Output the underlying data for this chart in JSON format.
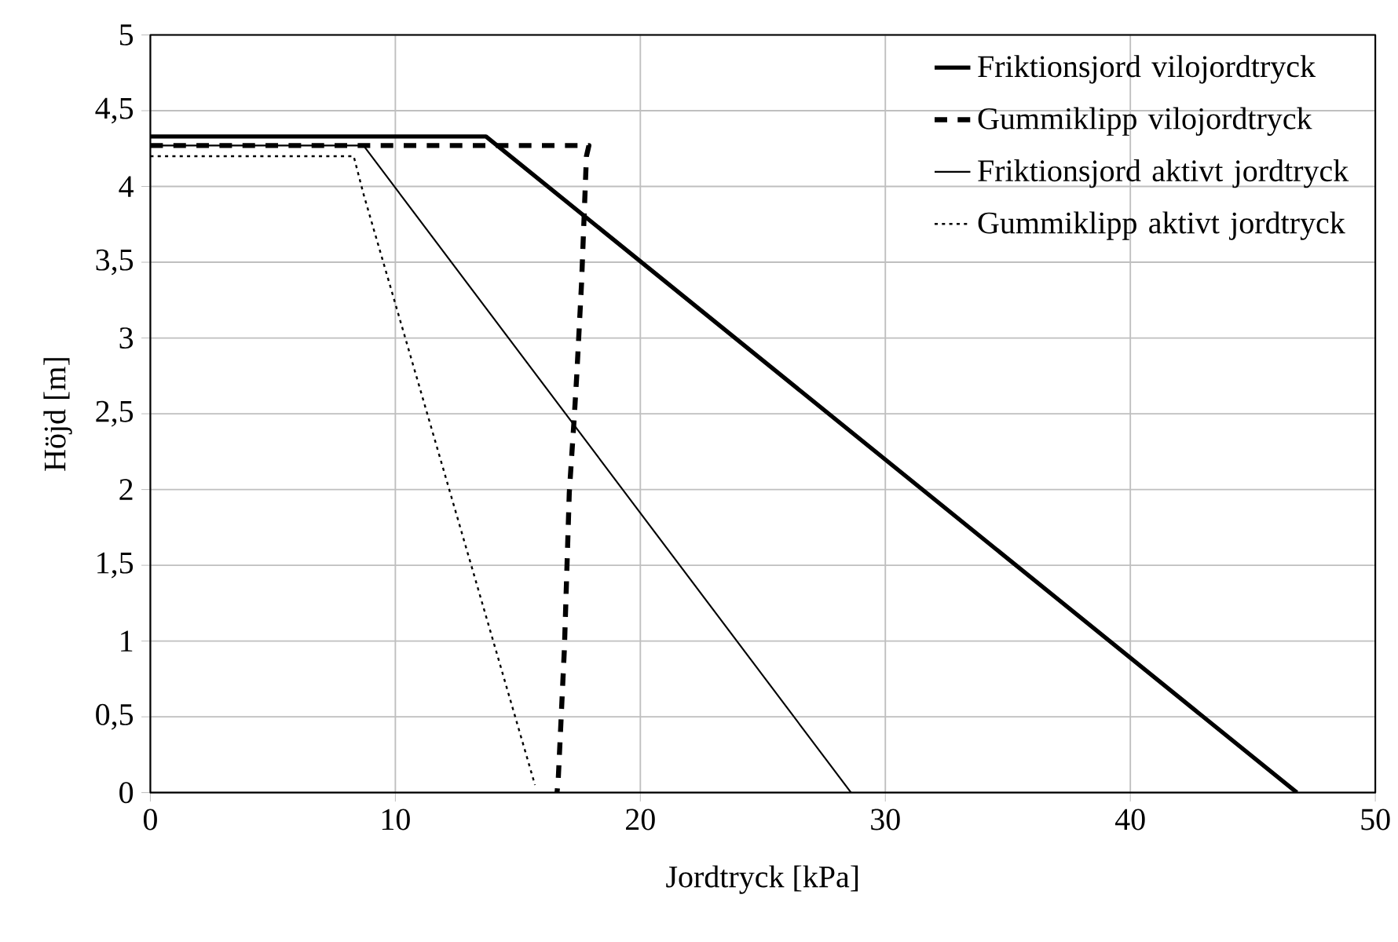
{
  "chart_data": {
    "type": "line",
    "xlabel": "Jordtryck [kPa]",
    "ylabel": "Höjd [m]",
    "xlim": [
      0,
      50
    ],
    "xticks": [
      0,
      10,
      20,
      30,
      40,
      50
    ],
    "ylim": [
      0,
      5
    ],
    "yticks": [
      0,
      {
        "value": 0.5,
        "label": "0,5"
      },
      1,
      {
        "value": 1.5,
        "label": "1,5"
      },
      2,
      {
        "value": 2.5,
        "label": "2,5"
      },
      3,
      {
        "value": 3.5,
        "label": "3,5"
      },
      4,
      {
        "value": 4.5,
        "label": "4,5"
      },
      5
    ],
    "grid": true,
    "legend": "top right",
    "marker": "none",
    "series": [
      {
        "name": "Friktionsjord vilojordtryck",
        "color": "#000000",
        "line_style": "solid",
        "x": [
          0,
          13.7,
          46.8
        ],
        "values": [
          4.33,
          4.33,
          0
        ]
      },
      {
        "name": "Gummiklipp vilojordtryck",
        "color": "#000000",
        "line_style": "dashed",
        "x": [
          0,
          17.9,
          17.8,
          17.6,
          17.4,
          17.3,
          17.1,
          16.9,
          16.65,
          16.6
        ],
        "values": [
          4.27,
          4.27,
          4.2,
          3.36,
          2.74,
          2.47,
          1.98,
          0.95,
          0.09,
          0
        ]
      },
      {
        "name": "Friktionsjord aktivt jordtryck",
        "color": "#000000",
        "line_style": "solid",
        "x": [
          0,
          8.7,
          28.6
        ],
        "values": [
          4.27,
          4.27,
          0
        ]
      },
      {
        "name": "Gummiklipp aktivt jordtryck",
        "color": "#000000",
        "line_style": "dotted",
        "x": [
          0,
          8.3,
          8.7,
          12.2,
          15.7
        ],
        "values": [
          4.2,
          4.2,
          3.95,
          2,
          0.05
        ]
      }
    ]
  }
}
